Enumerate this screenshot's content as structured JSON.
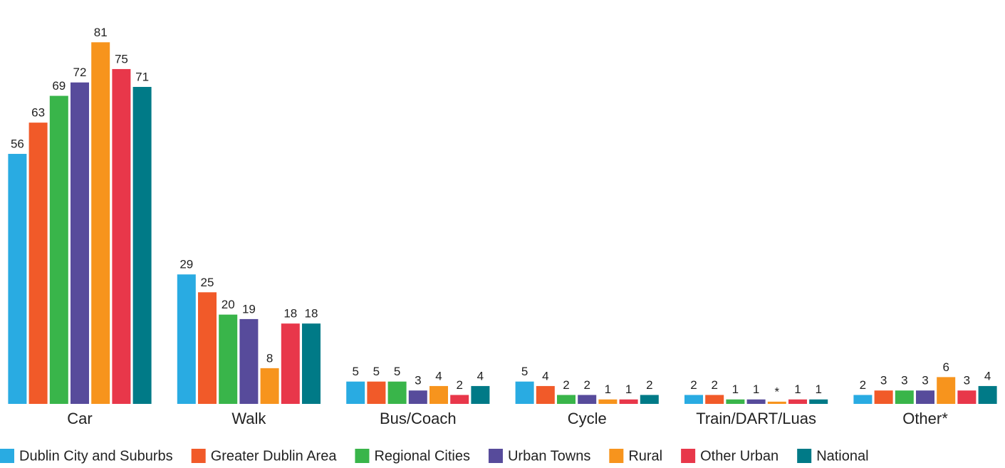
{
  "chart_data": {
    "type": "bar",
    "categories": [
      "Car",
      "Walk",
      "Bus/Coach",
      "Cycle",
      "Train/DART/Luas",
      "Other*"
    ],
    "series": [
      {
        "name": "Dublin City and Suburbs",
        "color": "#29abe2",
        "values": [
          56,
          29,
          5,
          5,
          2,
          2
        ]
      },
      {
        "name": "Greater Dublin Area",
        "color": "#f15a29",
        "values": [
          63,
          25,
          5,
          4,
          2,
          3
        ]
      },
      {
        "name": "Regional Cities",
        "color": "#39b54a",
        "values": [
          69,
          20,
          5,
          2,
          1,
          3
        ]
      },
      {
        "name": "Urban Towns",
        "color": "#574b9b",
        "values": [
          72,
          19,
          3,
          2,
          1,
          3
        ]
      },
      {
        "name": "Rural",
        "color": "#f7941d",
        "values": [
          81,
          8,
          4,
          1,
          0.5,
          6
        ],
        "value_labels": [
          "81",
          "8",
          "4",
          "1",
          "*",
          "6"
        ]
      },
      {
        "name": "Other Urban",
        "color": "#e8374a",
        "values": [
          75,
          18,
          2,
          1,
          1,
          3
        ]
      },
      {
        "name": "National",
        "color": "#007a87",
        "values": [
          71,
          18,
          4,
          2,
          1,
          4
        ]
      }
    ],
    "ylim": [
      0,
      86
    ],
    "legend": "bottom"
  }
}
